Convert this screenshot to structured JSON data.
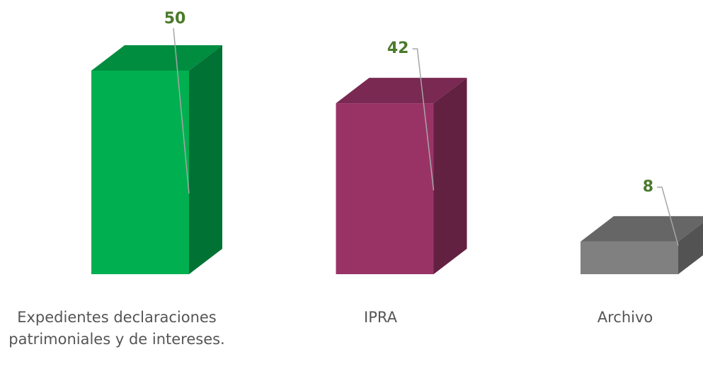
{
  "chart_data": {
    "type": "bar3d",
    "categories": [
      "Expedientes declaraciones patrimoniales y de intereses.",
      "IPRA",
      "Archivo"
    ],
    "values": [
      50,
      42,
      8
    ],
    "colors": [
      "#00b050",
      "#993366",
      "#808080"
    ]
  }
}
